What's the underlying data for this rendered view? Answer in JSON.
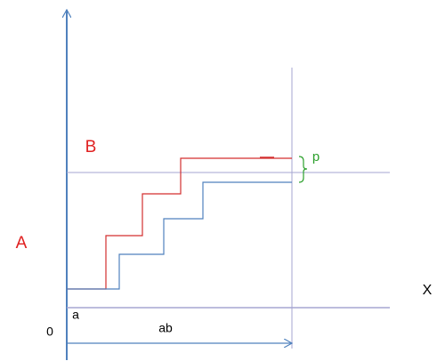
{
  "labels": {
    "b": "B",
    "a_side": "A",
    "p": "p",
    "x": "X",
    "a": "a",
    "zero": "0",
    "ab": "ab"
  }
}
